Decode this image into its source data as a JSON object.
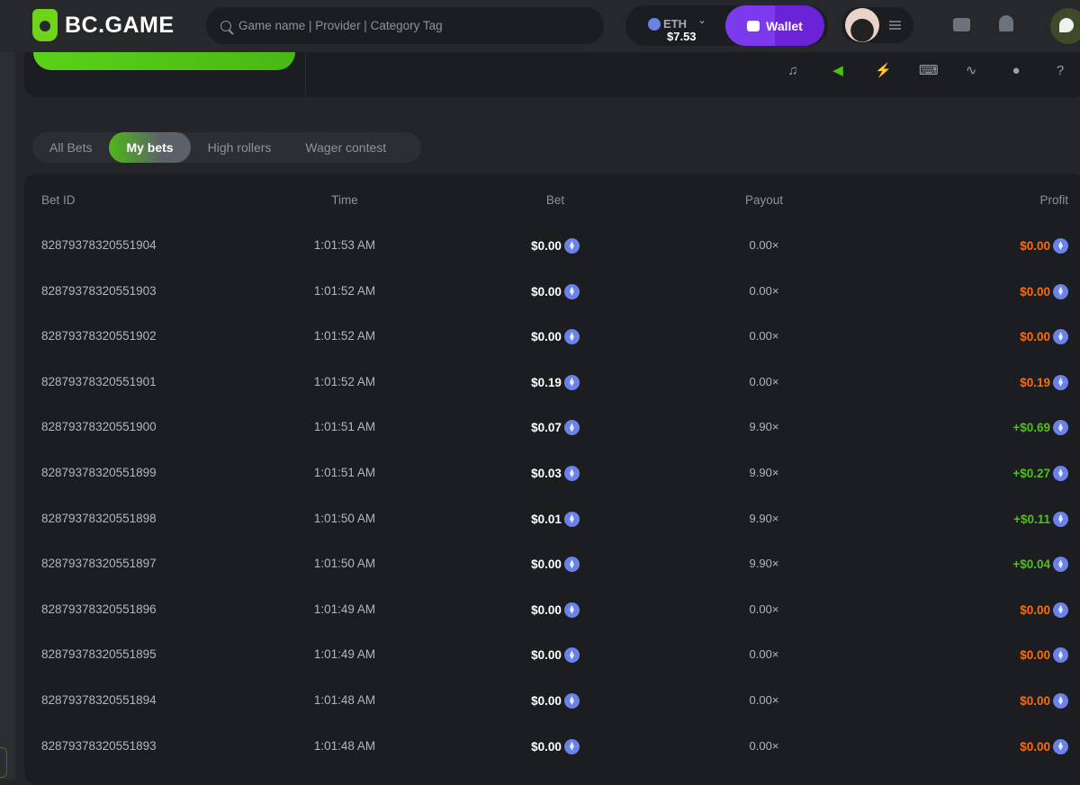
{
  "header": {
    "logo": "BC.GAME",
    "search_placeholder": "Game name | Provider | Category Tag",
    "currency": "ETH",
    "balance": "$7.53",
    "wallet_label": "Wallet"
  },
  "toolbar_icons": [
    "music-off-icon",
    "speaker-icon",
    "lightning-icon",
    "keyboard-icon",
    "graph-icon",
    "acorn-icon",
    "help-icon"
  ],
  "tabs": [
    {
      "label": "All Bets",
      "active": false
    },
    {
      "label": "My bets",
      "active": true
    },
    {
      "label": "High rollers",
      "active": false
    },
    {
      "label": "Wager contest",
      "active": false
    }
  ],
  "colors": {
    "accent": "#4ec01a",
    "wallet": "#7c3aed",
    "loss": "#ff6b0a",
    "win": "#4ec01a"
  },
  "table": {
    "columns": [
      "Bet ID",
      "Time",
      "Bet",
      "Payout",
      "Profit"
    ],
    "rows": [
      {
        "id": "82879378320551904",
        "time": "1:01:53 AM",
        "bet": "$0.00",
        "payout": "0.00×",
        "profit": "$0.00",
        "win": false
      },
      {
        "id": "82879378320551903",
        "time": "1:01:52 AM",
        "bet": "$0.00",
        "payout": "0.00×",
        "profit": "$0.00",
        "win": false
      },
      {
        "id": "82879378320551902",
        "time": "1:01:52 AM",
        "bet": "$0.00",
        "payout": "0.00×",
        "profit": "$0.00",
        "win": false
      },
      {
        "id": "82879378320551901",
        "time": "1:01:52 AM",
        "bet": "$0.19",
        "payout": "0.00×",
        "profit": "$0.19",
        "win": false
      },
      {
        "id": "82879378320551900",
        "time": "1:01:51 AM",
        "bet": "$0.07",
        "payout": "9.90×",
        "profit": "+$0.69",
        "win": true
      },
      {
        "id": "82879378320551899",
        "time": "1:01:51 AM",
        "bet": "$0.03",
        "payout": "9.90×",
        "profit": "+$0.27",
        "win": true
      },
      {
        "id": "82879378320551898",
        "time": "1:01:50 AM",
        "bet": "$0.01",
        "payout": "9.90×",
        "profit": "+$0.11",
        "win": true
      },
      {
        "id": "82879378320551897",
        "time": "1:01:50 AM",
        "bet": "$0.00",
        "payout": "9.90×",
        "profit": "+$0.04",
        "win": true
      },
      {
        "id": "82879378320551896",
        "time": "1:01:49 AM",
        "bet": "$0.00",
        "payout": "0.00×",
        "profit": "$0.00",
        "win": false
      },
      {
        "id": "82879378320551895",
        "time": "1:01:49 AM",
        "bet": "$0.00",
        "payout": "0.00×",
        "profit": "$0.00",
        "win": false
      },
      {
        "id": "82879378320551894",
        "time": "1:01:48 AM",
        "bet": "$0.00",
        "payout": "0.00×",
        "profit": "$0.00",
        "win": false
      },
      {
        "id": "82879378320551893",
        "time": "1:01:48 AM",
        "bet": "$0.00",
        "payout": "0.00×",
        "profit": "$0.00",
        "win": false
      }
    ]
  }
}
